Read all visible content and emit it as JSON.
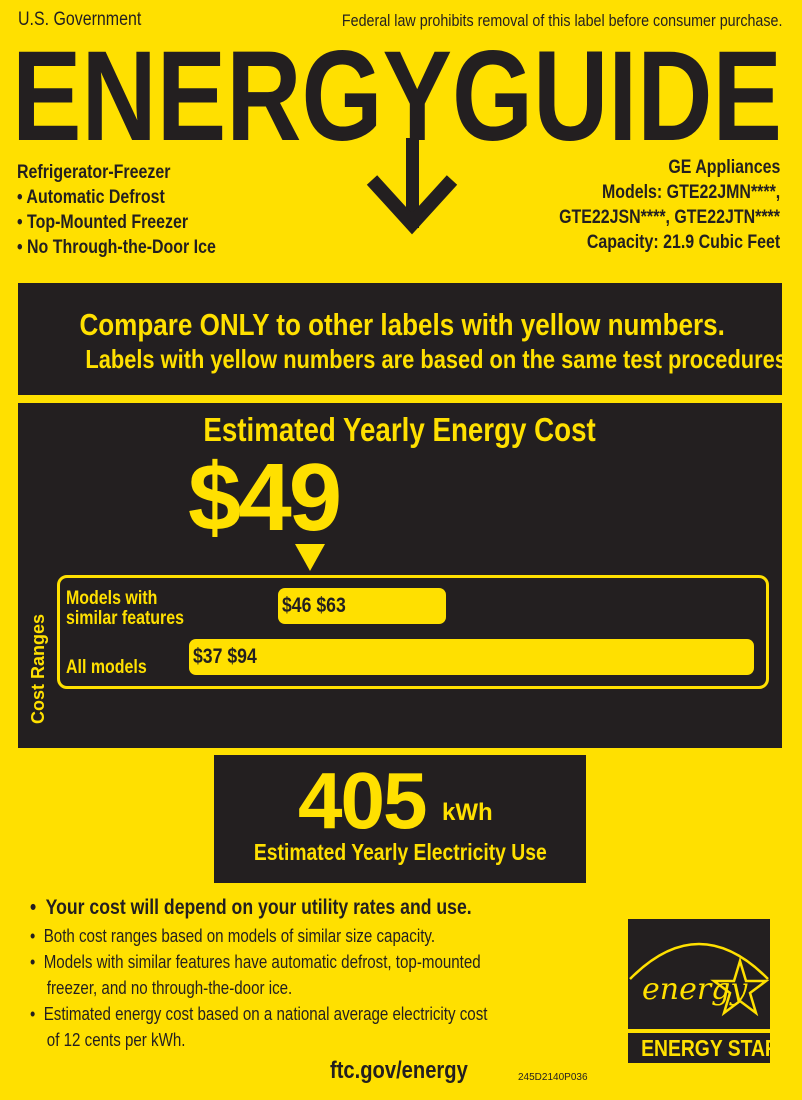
{
  "header": {
    "left": "U.S. Government",
    "right": "Federal law prohibits removal of this label before consumer purchase.",
    "title": "ENERGYGUIDE"
  },
  "product": {
    "type": "Refrigerator-Freezer",
    "features": [
      "• Automatic Defrost",
      "• Top-Mounted Freezer",
      "• No Through-the-Door Ice"
    ]
  },
  "manufacturer": {
    "brand": "GE Appliances",
    "models_line1": "Models: GTE22JMN****,",
    "models_line2": "GTE22JSN****, GTE22JTN****",
    "capacity": "Capacity: 21.9 Cubic Feet"
  },
  "compare": {
    "line1": "Compare ONLY to other labels with yellow numbers.",
    "line2": "Labels with yellow numbers are based on the same test procedures."
  },
  "cost": {
    "heading": "Estimated Yearly Energy Cost",
    "value": "$49",
    "ranges_label": "Cost Ranges",
    "similar": {
      "label_line1": "Models with",
      "label_line2": "similar features",
      "range_text": "$46 $63",
      "min": 46,
      "max": 63
    },
    "all": {
      "label": "All models",
      "range_text": "$37 $94",
      "min": 37,
      "max": 94
    }
  },
  "electricity": {
    "value": "405",
    "unit": "kWh",
    "label": "Estimated Yearly Electricity Use"
  },
  "notes": {
    "main": "•  Your cost will depend on your utility rates and use.",
    "items": [
      "•  Both cost ranges based on models of similar size capacity.",
      "•  Models with similar features have automatic defrost, top-mounted",
      "    freezer, and no through-the-door ice.",
      "•  Estimated energy cost based on a national average electricity cost",
      "    of 12 cents per kWh."
    ]
  },
  "footer": {
    "link": "ftc.gov/energy",
    "code": "245D2140P036"
  },
  "energy_star": {
    "script": "energy",
    "label": "ENERGY STAR"
  },
  "colors": {
    "yellow": "#FFE000",
    "dark": "#231F20"
  }
}
